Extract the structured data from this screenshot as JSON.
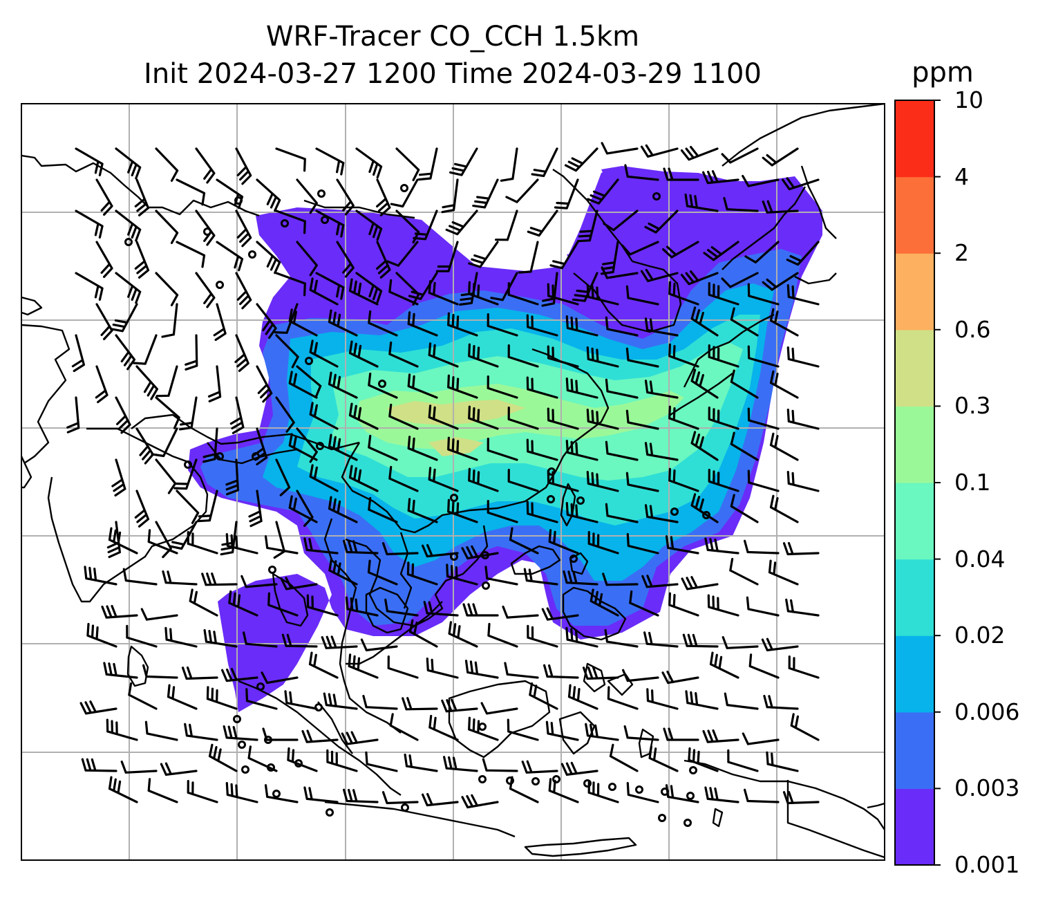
{
  "title": {
    "line1": "WRF-Tracer CO_CCH 1.5km",
    "line2": "Init 2024-03-27 1200 Time 2024-03-29 1100"
  },
  "colorbar": {
    "unit": "ppm",
    "levels": [
      "0.001",
      "0.003",
      "0.006",
      "0.02",
      "0.04",
      "0.1",
      "0.3",
      "0.6",
      "2",
      "4",
      "10"
    ],
    "colors": [
      "#6a2cf8",
      "#3a6ff5",
      "#07b3ea",
      "#2fdfd6",
      "#6af7c0",
      "#9bf899",
      "#cfe086",
      "#fdb05f",
      "#fd6f38",
      "#fb2d18"
    ]
  },
  "map": {
    "gridlines": true,
    "gridline_color": "#b0b0b0",
    "coastline_color": "#000000",
    "wind_barb_color": "#000000"
  }
}
